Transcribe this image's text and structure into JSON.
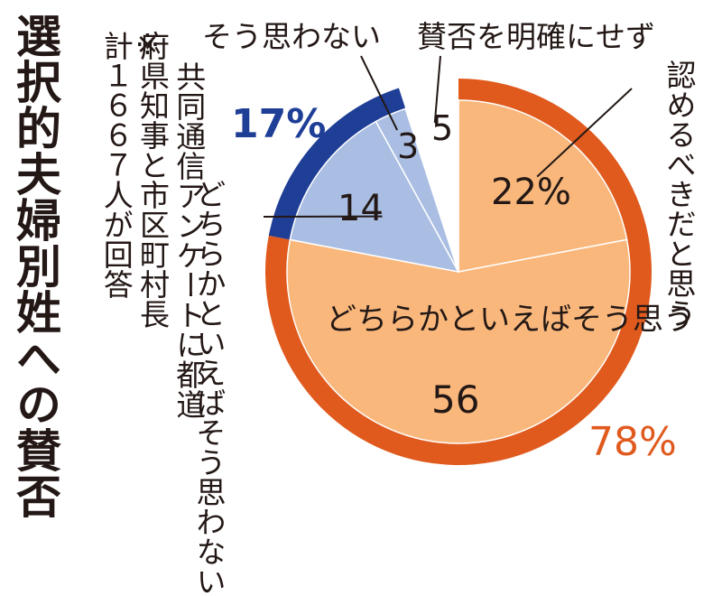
{
  "title": "選択的夫婦別姓への賛否",
  "note": {
    "mark": "※",
    "lines": [
      "共同通信アンケートに都道",
      "府県知事と市区町村長",
      "計１６６７人が回答"
    ]
  },
  "colors": {
    "agree_ring": "#E05A1E",
    "agree_inner": "#F9B77C",
    "disagree_ring": "#1F3E96",
    "disagree_inner": "#A9BEE2",
    "undecided": "#FFFFFF",
    "text": "#231815"
  },
  "group_labels": {
    "agree_total": "78%",
    "disagree_total": "17%"
  },
  "chart_data": {
    "type": "pie",
    "unit": "%",
    "slices": [
      {
        "label": "認めるべきだと思う",
        "value": 22,
        "display": "22%",
        "group": "agree"
      },
      {
        "label": "どちらかといえばそう思う",
        "value": 56,
        "display": "56",
        "group": "agree"
      },
      {
        "label": "どちらかといえばそう思わない",
        "value": 14,
        "display": "14",
        "group": "disagree"
      },
      {
        "label": "そう思わない",
        "value": 3,
        "display": "3",
        "group": "disagree"
      },
      {
        "label": "賛否を明確にせず",
        "value": 5,
        "display": "5",
        "group": "undecided"
      }
    ],
    "groups": [
      {
        "name": "agree",
        "total": 78
      },
      {
        "name": "disagree",
        "total": 17
      }
    ]
  }
}
